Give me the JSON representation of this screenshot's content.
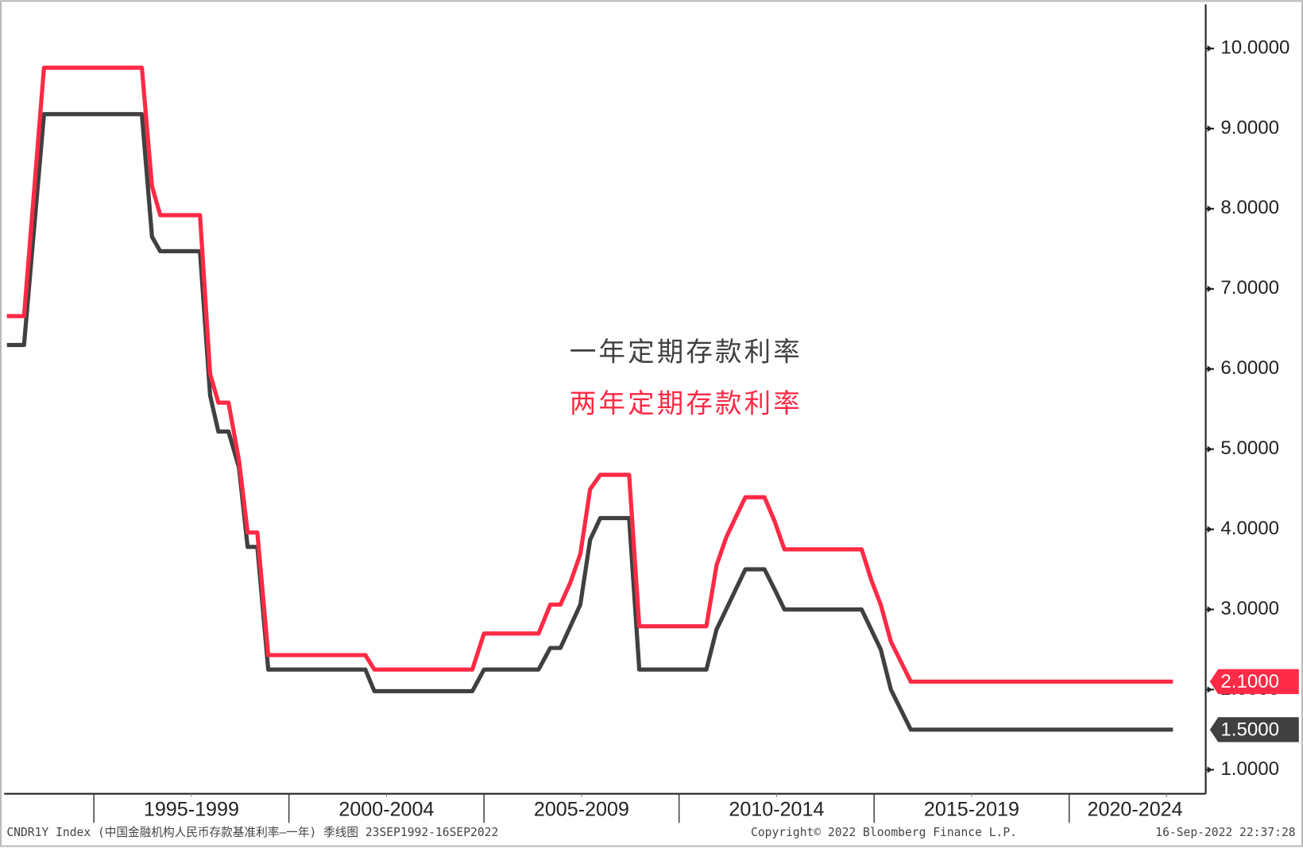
{
  "chart_data": {
    "type": "line",
    "xlim": [
      1992.7,
      2023.5
    ],
    "ylim": [
      0.7,
      10.55
    ],
    "yticks": [
      {
        "value": 1,
        "label": "1.0000"
      },
      {
        "value": 2,
        "label": "2.0000"
      },
      {
        "value": 3,
        "label": "3.0000"
      },
      {
        "value": 4,
        "label": "4.0000"
      },
      {
        "value": 5,
        "label": "5.0000"
      },
      {
        "value": 6,
        "label": "6.0000"
      },
      {
        "value": 7,
        "label": "7.0000"
      },
      {
        "value": 8,
        "label": "8.0000"
      },
      {
        "value": 9,
        "label": "9.0000"
      },
      {
        "value": 10,
        "label": "10.0000"
      }
    ],
    "xticks": [
      {
        "value": 1997.5,
        "label": "1995-1999"
      },
      {
        "value": 2002.5,
        "label": "2000-2004"
      },
      {
        "value": 2007.5,
        "label": "2005-2009"
      },
      {
        "value": 2012.5,
        "label": "2010-2014"
      },
      {
        "value": 2017.5,
        "label": "2015-2019"
      },
      {
        "value": 2022.5,
        "label": "2020-2024"
      }
    ],
    "series": [
      {
        "name": "一年定期存款利率",
        "color": "#404040",
        "last_label": "1.5000",
        "x": [
          1992.77,
          1993.21,
          1993.72,
          1996.23,
          1996.49,
          1996.7,
          1997.72,
          1997.98,
          1998.19,
          1998.45,
          1998.72,
          1998.94,
          1999.19,
          1999.47,
          2001.96,
          2002.19,
          2004.7,
          2005.0,
          2006.4,
          2006.7,
          2006.96,
          2007.47,
          2007.72,
          2007.98,
          2008.72,
          2008.98,
          2010.7,
          2010.96,
          2011.7,
          2012.19,
          2012.45,
          2012.7,
          2014.68,
          2015.17,
          2015.43,
          2015.94,
          2022.66
        ],
        "values": [
          6.3,
          6.3,
          9.18,
          9.18,
          7.65,
          7.47,
          7.47,
          5.67,
          5.22,
          5.22,
          4.77,
          3.78,
          3.78,
          2.25,
          2.25,
          1.98,
          1.98,
          2.25,
          2.25,
          2.52,
          2.52,
          3.06,
          3.87,
          4.14,
          4.14,
          2.25,
          2.25,
          2.75,
          3.5,
          3.5,
          3.25,
          3.0,
          3.0,
          2.5,
          2.0,
          1.5,
          1.5
        ]
      },
      {
        "name": "两年定期存款利率",
        "color": "#ff2a45",
        "last_label": "2.1000",
        "x": [
          1992.77,
          1993.21,
          1993.72,
          1996.23,
          1996.49,
          1996.7,
          1997.72,
          1997.98,
          1998.19,
          1998.45,
          1998.72,
          1998.94,
          1999.19,
          1999.47,
          2001.96,
          2002.19,
          2004.7,
          2005.0,
          2006.4,
          2006.7,
          2006.96,
          2007.21,
          2007.47,
          2007.72,
          2007.98,
          2008.72,
          2008.98,
          2010.7,
          2010.96,
          2011.21,
          2011.45,
          2011.7,
          2012.19,
          2012.45,
          2012.7,
          2014.68,
          2014.94,
          2015.17,
          2015.43,
          2015.94,
          2022.66
        ],
        "values": [
          6.66,
          6.66,
          9.76,
          9.76,
          8.28,
          7.92,
          7.92,
          5.94,
          5.58,
          5.58,
          4.86,
          3.96,
          3.96,
          2.43,
          2.43,
          2.25,
          2.25,
          2.7,
          2.7,
          3.06,
          3.06,
          3.33,
          3.69,
          4.5,
          4.68,
          4.68,
          2.79,
          2.79,
          3.55,
          3.9,
          4.15,
          4.4,
          4.4,
          4.1,
          3.75,
          3.75,
          3.35,
          3.06,
          2.6,
          2.1,
          2.1
        ]
      }
    ]
  },
  "footer": {
    "left": "CNDR1Y Index (中国金融机构人民币存款基准利率—一年)  季线图 23SEP1992-16SEP2022",
    "center": "Copyright© 2022 Bloomberg Finance L.P.",
    "right": "16-Sep-2022 22:37:28"
  }
}
